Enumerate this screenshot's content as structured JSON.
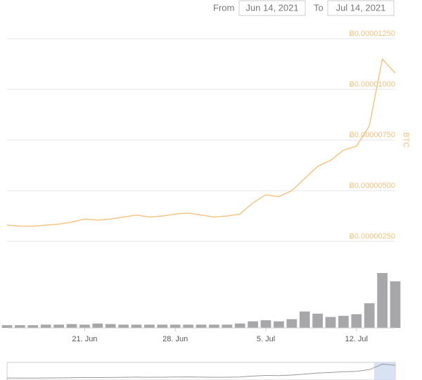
{
  "controls": {
    "from_label": "From",
    "from_date": "Jun 14, 2021",
    "to_label": "To",
    "to_date": "Jul 14, 2021"
  },
  "chart_data": {
    "type": "line",
    "categories": [
      null,
      null,
      null,
      null,
      null,
      null,
      "21. Jun",
      null,
      null,
      null,
      null,
      null,
      null,
      "28. Jun",
      null,
      null,
      null,
      null,
      null,
      null,
      "5. Jul",
      null,
      null,
      null,
      null,
      null,
      null,
      "12. Jul",
      null,
      null,
      null
    ],
    "series": [
      {
        "color": "#f5c585",
        "values": [
          3.3e-06,
          3.25e-06,
          3.25e-06,
          3.3e-06,
          3.35e-06,
          3.45e-06,
          3.6e-06,
          3.55e-06,
          3.6e-06,
          3.7e-06,
          3.8e-06,
          3.7e-06,
          3.75e-06,
          3.85e-06,
          3.9e-06,
          3.8e-06,
          3.7e-06,
          3.75e-06,
          3.85e-06,
          4.4e-06,
          4.8e-06,
          4.7e-06,
          5e-06,
          5.6e-06,
          6.2e-06,
          6.5e-06,
          7e-06,
          7.2e-06,
          8.2e-06,
          1.15e-05,
          1.08e-05
        ]
      }
    ],
    "volume": {
      "color": "#8a8a8e",
      "values": [
        5,
        5,
        5,
        6,
        6,
        7,
        6,
        8,
        7,
        6,
        6,
        6,
        6,
        6,
        6,
        6,
        6,
        6,
        8,
        12,
        14,
        12,
        16,
        30,
        26,
        20,
        22,
        25,
        45,
        100,
        85
      ]
    },
    "ylim": [
      2.5e-06,
      1.25e-05
    ],
    "yticks": [
      {
        "value": 2.5e-06,
        "label": "Ƀ0.00000250"
      },
      {
        "value": 5e-06,
        "label": "Ƀ0.00000500"
      },
      {
        "value": 7.5e-06,
        "label": "Ƀ0.00000750"
      },
      {
        "value": 1e-05,
        "label": "Ƀ0.00001000"
      },
      {
        "value": 1.25e-05,
        "label": "Ƀ0.00001250"
      }
    ],
    "ylabel": "BTC",
    "grid": true
  }
}
